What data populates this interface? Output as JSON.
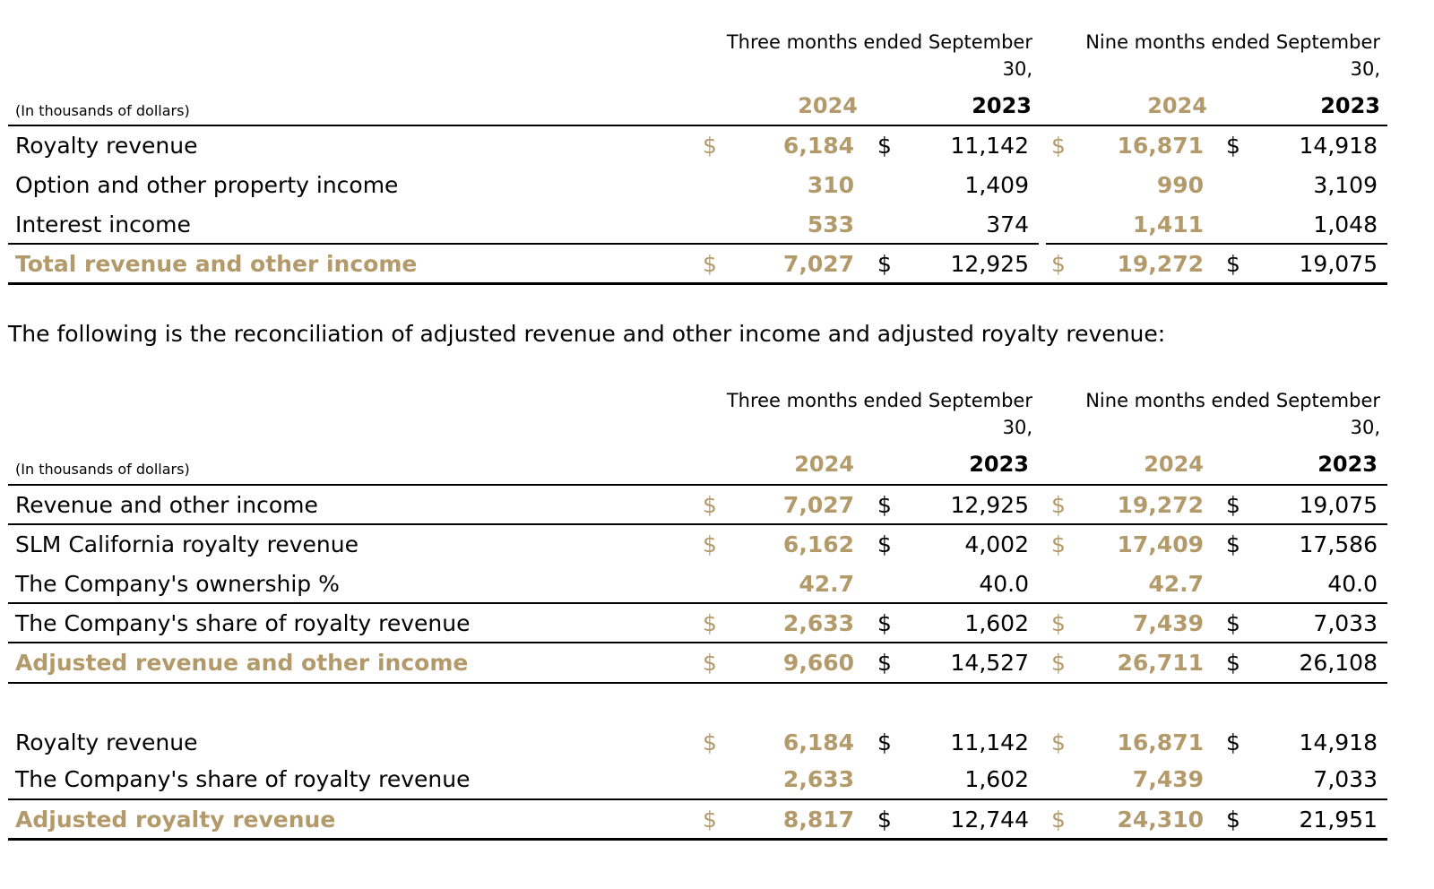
{
  "table1": {
    "units": "(In thousands of dollars)",
    "header": {
      "three_months": [
        "Three months ended September",
        "30,"
      ],
      "nine_months": [
        "Nine months ended September",
        "30,"
      ],
      "years": [
        "2024",
        "2023",
        "2024",
        "2023"
      ]
    },
    "rows": [
      {
        "label": "Royalty revenue",
        "values": [
          "6,184",
          "11,142",
          "16,871",
          "14,918"
        ],
        "dollar": true
      },
      {
        "label": "Option and other property income",
        "values": [
          "310",
          "1,409",
          "990",
          "3,109"
        ],
        "dollar": false
      },
      {
        "label": "Interest income",
        "values": [
          "533",
          "374",
          "1,411",
          "1,048"
        ],
        "dollar": false
      },
      {
        "label": "Total revenue and other income",
        "values": [
          "7,027",
          "12,925",
          "19,272",
          "19,075"
        ],
        "dollar": true
      }
    ]
  },
  "sentence": "The following is the reconciliation of adjusted revenue and other income and adjusted royalty revenue:",
  "table2": {
    "units": "(In thousands of dollars)",
    "header": {
      "three_months": [
        "Three months ended September",
        "30,"
      ],
      "nine_months": [
        "Nine months ended September",
        "30,"
      ],
      "years": [
        "2024",
        "2023",
        "2024",
        "2023"
      ]
    },
    "rows": [
      {
        "label": "Revenue and other income",
        "values": [
          "7,027",
          "12,925",
          "19,272",
          "19,075"
        ],
        "dollar": true
      },
      {
        "label": "SLM California royalty revenue",
        "values": [
          "6,162",
          "4,002",
          "17,409",
          "17,586"
        ],
        "dollar": true
      },
      {
        "label": "The Company's ownership %",
        "values": [
          "42.7",
          "40.0",
          "42.7",
          "40.0"
        ],
        "dollar": false
      },
      {
        "label": "The Company's share of royalty revenue",
        "values": [
          "2,633",
          "1,602",
          "7,439",
          "7,033"
        ],
        "dollar": true
      },
      {
        "label": "Adjusted revenue and other income",
        "values": [
          "9,660",
          "14,527",
          "26,711",
          "26,108"
        ],
        "dollar": true
      }
    ],
    "rows_b": [
      {
        "label": "Royalty revenue",
        "values": [
          "6,184",
          "11,142",
          "16,871",
          "14,918"
        ],
        "dollar": true
      },
      {
        "label": "The Company's share of royalty revenue",
        "values": [
          "2,633",
          "1,602",
          "7,439",
          "7,033"
        ],
        "dollar": false
      },
      {
        "label": "Adjusted royalty revenue",
        "values": [
          "8,817",
          "12,744",
          "24,310",
          "21,951"
        ],
        "dollar": true
      }
    ]
  },
  "currency_symbol": "$",
  "colors": {
    "accent": "#b39a6b",
    "text": "#000000"
  }
}
